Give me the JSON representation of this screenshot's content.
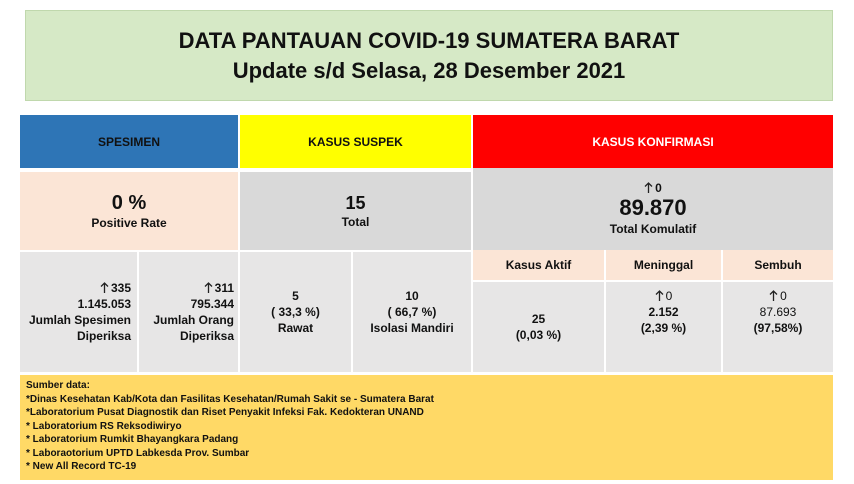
{
  "header": {
    "title": "DATA PANTAUAN COVID-19 SUMATERA BARAT",
    "subtitle": "Update s/d Selasa, 28 Desember 2021"
  },
  "spesimen": {
    "heading": "SPESIMEN",
    "positive_rate": "0 %",
    "positive_rate_label": "Positive Rate",
    "jumlah_spesimen": {
      "change": "335",
      "value": "1.145.053",
      "label": "Jumlah Spesimen Diperiksa"
    },
    "jumlah_orang": {
      "change": "311",
      "value": "795.344",
      "label": "Jumlah Orang Diperiksa"
    }
  },
  "suspek": {
    "heading": "KASUS SUSPEK",
    "total": "15",
    "total_label": "Total",
    "rawat": {
      "value": "5",
      "percent": "( 33,3 %)",
      "label": "Rawat"
    },
    "isolasi": {
      "value": "10",
      "percent": "( 66,7 %)",
      "label": "Isolasi Mandiri"
    }
  },
  "konfirmasi": {
    "heading": "KASUS KONFIRMASI",
    "change": "0",
    "total": "89.870",
    "total_label": "Total Komulatif",
    "aktif": {
      "label": "Kasus Aktif",
      "value": "25",
      "percent": "(0,03 %)"
    },
    "meninggal": {
      "label": "Meninggal",
      "change": "0",
      "value": "2.152",
      "percent": "(2,39 %)"
    },
    "sembuh": {
      "label": "Sembuh",
      "change": "0",
      "value": "87.693",
      "percent": "(97,58%)"
    }
  },
  "sources": {
    "heading": "Sumber data:",
    "items": [
      "*Dinas Kesehatan Kab/Kota  dan Fasilitas Kesehatan/Rumah Sakit se - Sumatera Barat",
      "*Laboratorium  Pusat Diagnostik dan Riset  Penyakit Infeksi Fak. Kedokteran UNAND",
      "* Laboratorium RS Reksodiwiryo",
      "* Laboratorium Rumkit Bhayangkara Padang",
      "* Laboraotorium UPTD Labkesda Prov. Sumbar",
      "* New All Record TC-19"
    ]
  }
}
